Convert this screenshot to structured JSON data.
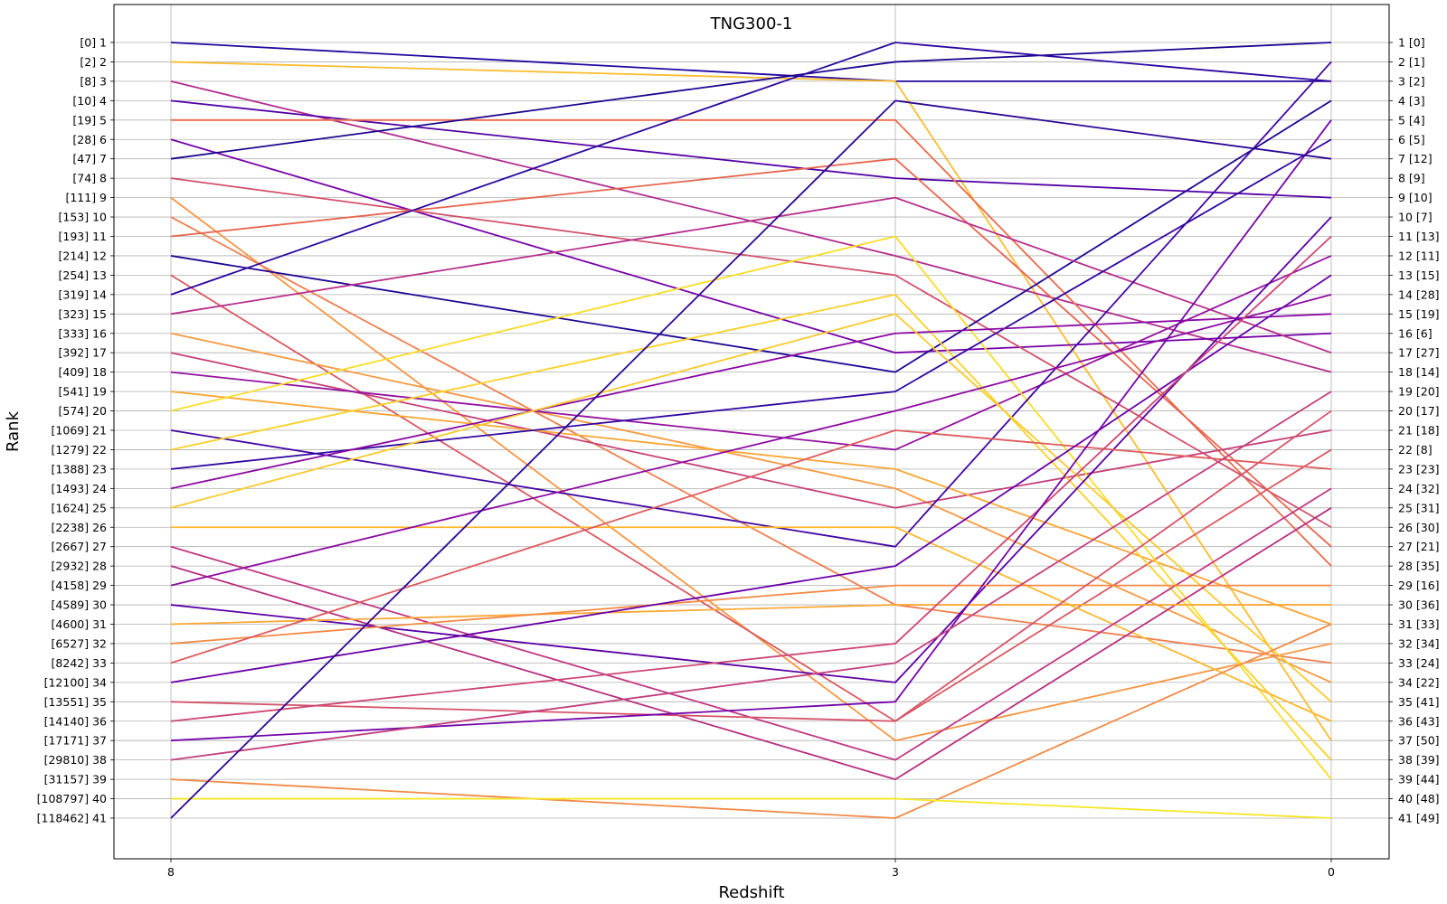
{
  "chart_data": {
    "type": "line",
    "title": "TNG300-1",
    "xlabel": "Redshift",
    "ylabel": "Rank",
    "x_ticks": [
      "8",
      "3",
      "0"
    ],
    "grid": true,
    "left_tick_labels": [
      "[0] 1",
      "[2] 2",
      "[8] 3",
      "[10] 4",
      "[19] 5",
      "[28] 6",
      "[47] 7",
      "[74] 8",
      "[111] 9",
      "[153] 10",
      "[193] 11",
      "[214] 12",
      "[254] 13",
      "[319] 14",
      "[323] 15",
      "[333] 16",
      "[392] 17",
      "[409] 18",
      "[541] 19",
      "[574] 20",
      "[1069] 21",
      "[1279] 22",
      "[1388] 23",
      "[1493] 24",
      "[1624] 25",
      "[2238] 26",
      "[2667] 27",
      "[2932] 28",
      "[4158] 29",
      "[4589] 30",
      "[4600] 31",
      "[6527] 32",
      "[8242] 33",
      "[12100] 34",
      "[13551] 35",
      "[14140] 36",
      "[17171] 37",
      "[29810] 38",
      "[31157] 39",
      "[108797] 40",
      "[118462] 41"
    ],
    "right_tick_labels": [
      "1 [0]",
      "2 [1]",
      "3 [2]",
      "4 [3]",
      "5 [4]",
      "6 [5]",
      "7 [12]",
      "8 [9]",
      "9 [10]",
      "10 [7]",
      "11 [13]",
      "12 [11]",
      "13 [15]",
      "14 [28]",
      "15 [19]",
      "16 [6]",
      "17 [27]",
      "18 [14]",
      "19 [20]",
      "20 [17]",
      "21 [18]",
      "22 [8]",
      "23 [23]",
      "24 [32]",
      "25 [31]",
      "26 [30]",
      "27 [21]",
      "28 [35]",
      "29 [16]",
      "30 [36]",
      "31 [33]",
      "32 [34]",
      "33 [24]",
      "34 [22]",
      "35 [41]",
      "36 [43]",
      "37 [50]",
      "38 [39]",
      "39 [44]",
      "40 [48]",
      "41 [49]"
    ],
    "series": [
      {
        "ranks": [
          1,
          3,
          3
        ],
        "color": "#22069d"
      },
      {
        "ranks": [
          2,
          3,
          37
        ],
        "color": "#fdbc2d"
      },
      {
        "ranks": [
          3,
          12,
          18
        ],
        "color": "#b22d8f"
      },
      {
        "ranks": [
          4,
          8,
          9
        ],
        "color": "#5303a6"
      },
      {
        "ranks": [
          5,
          5,
          28
        ],
        "color": "#ea6a4c"
      },
      {
        "ranks": [
          6,
          17,
          16
        ],
        "color": "#7603a8"
      },
      {
        "ranks": [
          7,
          2,
          1
        ],
        "color": "#1b068f"
      },
      {
        "ranks": [
          8,
          13,
          26
        ],
        "color": "#d24f69"
      },
      {
        "ranks": [
          9,
          37,
          32
        ],
        "color": "#f89541"
      },
      {
        "ranks": [
          10,
          30,
          33
        ],
        "color": "#f07e50"
      },
      {
        "ranks": [
          11,
          7,
          27
        ],
        "color": "#e7644f"
      },
      {
        "ranks": [
          12,
          18,
          4
        ],
        "color": "#1e0694"
      },
      {
        "ranks": [
          13,
          36,
          22
        ],
        "color": "#da5861"
      },
      {
        "ranks": [
          14,
          1,
          3
        ],
        "color": "#2d07a0"
      },
      {
        "ranks": [
          15,
          9,
          17
        ],
        "color": "#b72f8b"
      },
      {
        "ranks": [
          16,
          24,
          34
        ],
        "color": "#f9993f"
      },
      {
        "ranks": [
          17,
          25,
          21
        ],
        "color": "#c7407a"
      },
      {
        "ranks": [
          18,
          22,
          12
        ],
        "color": "#9512a0"
      },
      {
        "ranks": [
          19,
          23,
          31
        ],
        "color": "#fca534"
      },
      {
        "ranks": [
          20,
          11,
          39
        ],
        "color": "#f9dd26"
      },
      {
        "ranks": [
          21,
          27,
          2
        ],
        "color": "#4207a3"
      },
      {
        "ranks": [
          22,
          14,
          38
        ],
        "color": "#fbd126"
      },
      {
        "ranks": [
          23,
          19,
          6
        ],
        "color": "#3206a1"
      },
      {
        "ranks": [
          24,
          16,
          15
        ],
        "color": "#8a0aa4"
      },
      {
        "ranks": [
          25,
          15,
          35
        ],
        "color": "#fbca2a"
      },
      {
        "ranks": [
          26,
          26,
          36
        ],
        "color": "#fdb72c"
      },
      {
        "ranks": [
          27,
          38,
          24
        ],
        "color": "#c13885"
      },
      {
        "ranks": [
          28,
          39,
          25
        ],
        "color": "#b7307f"
      },
      {
        "ranks": [
          29,
          20,
          14
        ],
        "color": "#8e0ba3"
      },
      {
        "ranks": [
          30,
          34,
          10
        ],
        "color": "#5a01a5"
      },
      {
        "ranks": [
          31,
          30,
          30
        ],
        "color": "#fda734"
      },
      {
        "ranks": [
          32,
          29,
          29
        ],
        "color": "#f48a45"
      },
      {
        "ranks": [
          33,
          21,
          23
        ],
        "color": "#df5a5d"
      },
      {
        "ranks": [
          34,
          28,
          13
        ],
        "color": "#6a00a7"
      },
      {
        "ranks": [
          35,
          36,
          20
        ],
        "color": "#d5546a"
      },
      {
        "ranks": [
          36,
          32,
          11
        ],
        "color": "#cd4673"
      },
      {
        "ranks": [
          37,
          35,
          5
        ],
        "color": "#7306a9"
      },
      {
        "ranks": [
          38,
          33,
          19
        ],
        "color": "#c3407e"
      },
      {
        "ranks": [
          39,
          41,
          31
        ],
        "color": "#f28a47"
      },
      {
        "ranks": [
          40,
          40,
          41
        ],
        "color": "#f5e728"
      },
      {
        "ranks": [
          41,
          4,
          7
        ],
        "color": "#2c0694"
      }
    ]
  }
}
